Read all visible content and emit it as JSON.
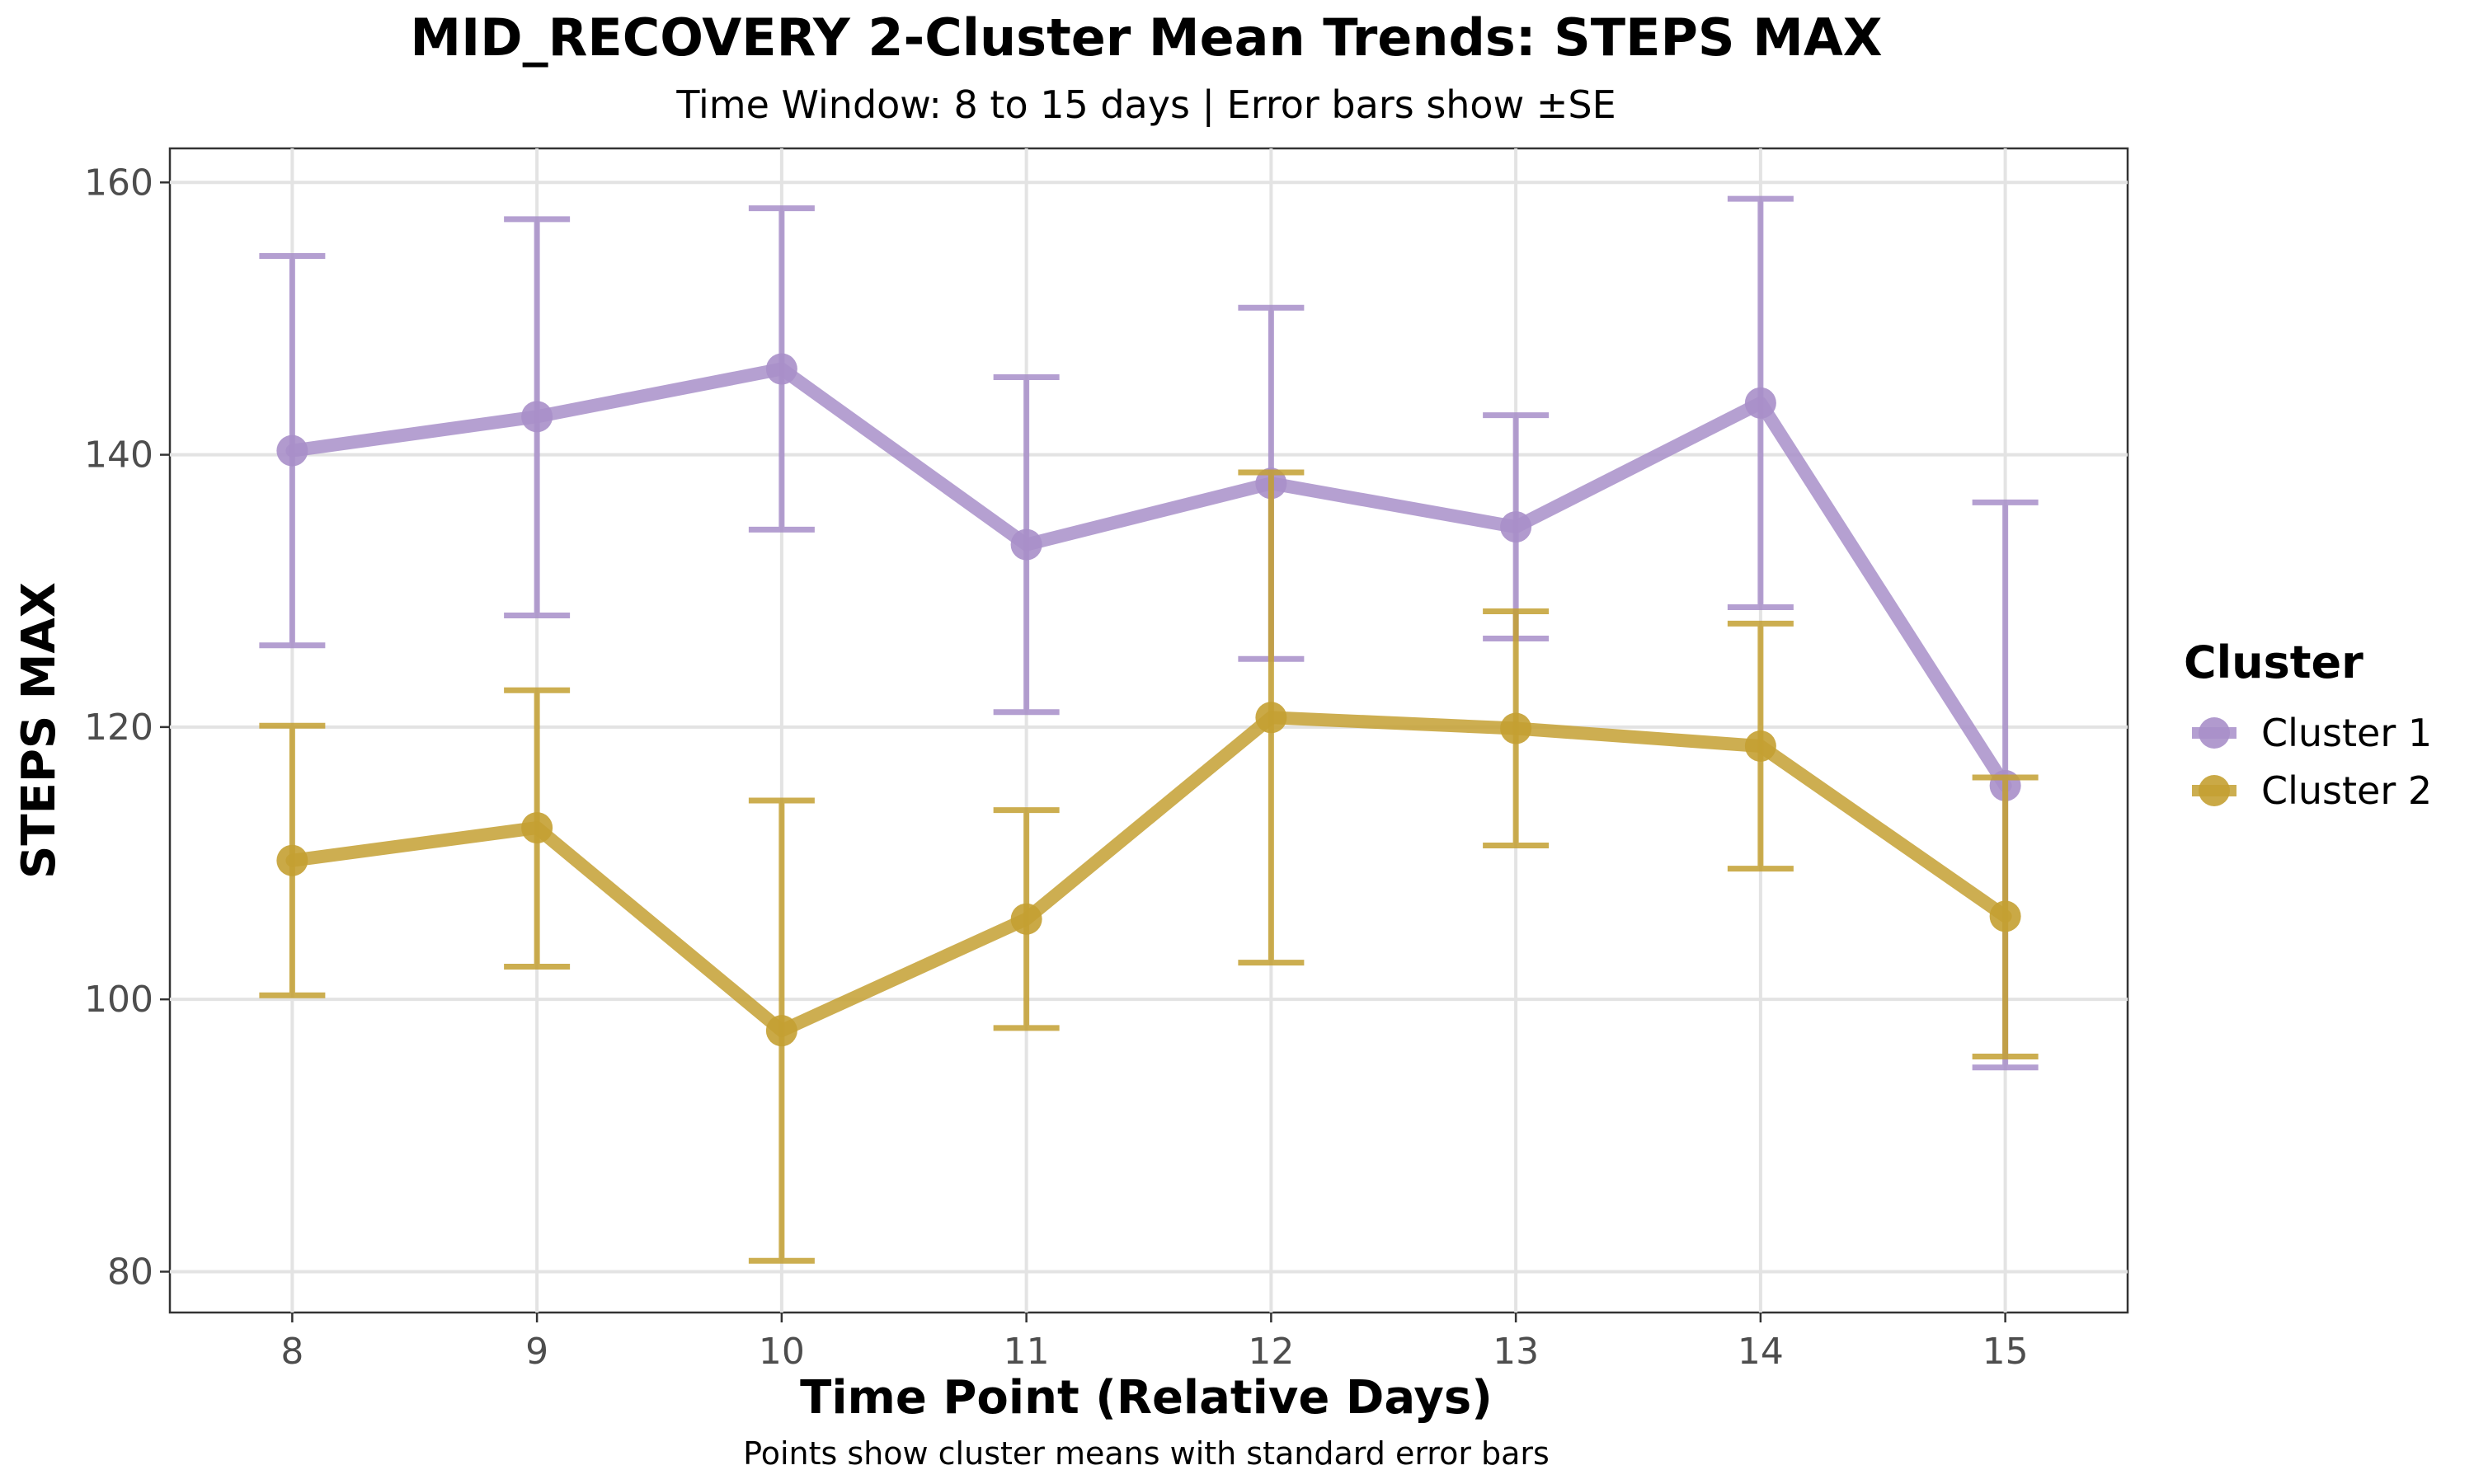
{
  "chart_data": {
    "type": "line",
    "title": "MID_RECOVERY 2-Cluster Mean Trends: STEPS MAX",
    "subtitle": "Time Window: 8 to 15 days | Error bars show ±SE",
    "xlabel": "Time Point (Relative Days)",
    "ylabel": "STEPS MAX",
    "caption": "Points show cluster means with standard error bars",
    "x": [
      8,
      9,
      10,
      11,
      12,
      13,
      14,
      15
    ],
    "x_tick_labels": [
      "8",
      "9",
      "10",
      "11",
      "12",
      "13",
      "14",
      "15"
    ],
    "y_ticks": [
      80,
      100,
      120,
      140,
      160
    ],
    "y_tick_labels": [
      "80",
      "100",
      "120",
      "140",
      "160"
    ],
    "xlim": [
      7.5,
      15.5
    ],
    "ylim": [
      77,
      162.5
    ],
    "grid": true,
    "legend_title": "Cluster",
    "legend_position": "right",
    "series": [
      {
        "name": "Cluster 1",
        "color": "#a88fc9",
        "values": [
          140.3,
          142.8,
          146.3,
          133.4,
          137.9,
          134.7,
          143.8,
          115.7
        ],
        "lower": [
          126.0,
          128.2,
          134.5,
          121.1,
          125.0,
          126.5,
          128.8,
          95.0
        ],
        "upper": [
          154.6,
          157.3,
          158.1,
          145.7,
          150.8,
          142.9,
          158.8,
          136.5
        ]
      },
      {
        "name": "Cluster 2",
        "color": "#c4a032",
        "values": [
          110.2,
          112.6,
          97.7,
          105.9,
          120.7,
          119.9,
          118.6,
          106.1
        ],
        "lower": [
          100.3,
          102.4,
          80.8,
          97.9,
          102.7,
          111.3,
          109.6,
          95.8
        ],
        "upper": [
          120.1,
          122.7,
          114.6,
          113.9,
          138.7,
          128.5,
          127.6,
          116.3
        ]
      }
    ]
  }
}
